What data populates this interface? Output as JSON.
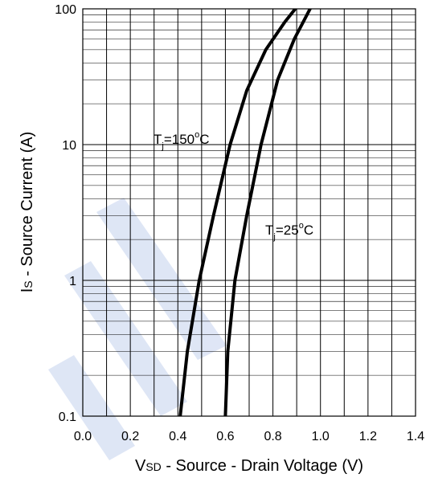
{
  "chart_data": {
    "type": "line",
    "x_scale": "linear",
    "y_scale": "log",
    "xlim": [
      0.0,
      1.4
    ],
    "ylim": [
      0.1,
      100
    ],
    "grid": true,
    "x_ticks": [
      "0.0",
      "0.2",
      "0.4",
      "0.6",
      "0.8",
      "1.0",
      "1.2",
      "1.4"
    ],
    "y_ticks": [
      "0.1",
      "1",
      "10",
      "100"
    ],
    "xlabel": {
      "main1": "V",
      "sub1": "SD",
      "rest": " - Source - Drain Voltage (V)"
    },
    "ylabel": {
      "main1": "I",
      "sub1": "S",
      "rest": " - Source Current (A)"
    },
    "series": [
      {
        "label": {
          "main": "T",
          "sub": "j",
          "rest": "=150",
          "deg": "o",
          "unit": "C"
        },
        "x": [
          0.41,
          0.44,
          0.49,
          0.55,
          0.62,
          0.69,
          0.77,
          0.85,
          0.93
        ],
        "y": [
          0.1,
          0.3,
          1.0,
          3.0,
          10,
          25,
          50,
          80,
          120
        ]
      },
      {
        "label": {
          "main": "T",
          "sub": "j",
          "rest": "=25",
          "deg": "o",
          "unit": "C"
        },
        "x": [
          0.6,
          0.61,
          0.64,
          0.69,
          0.75,
          0.82,
          0.89,
          0.98
        ],
        "y": [
          0.1,
          0.3,
          1.0,
          3.0,
          10,
          30,
          60,
          120
        ]
      }
    ]
  }
}
